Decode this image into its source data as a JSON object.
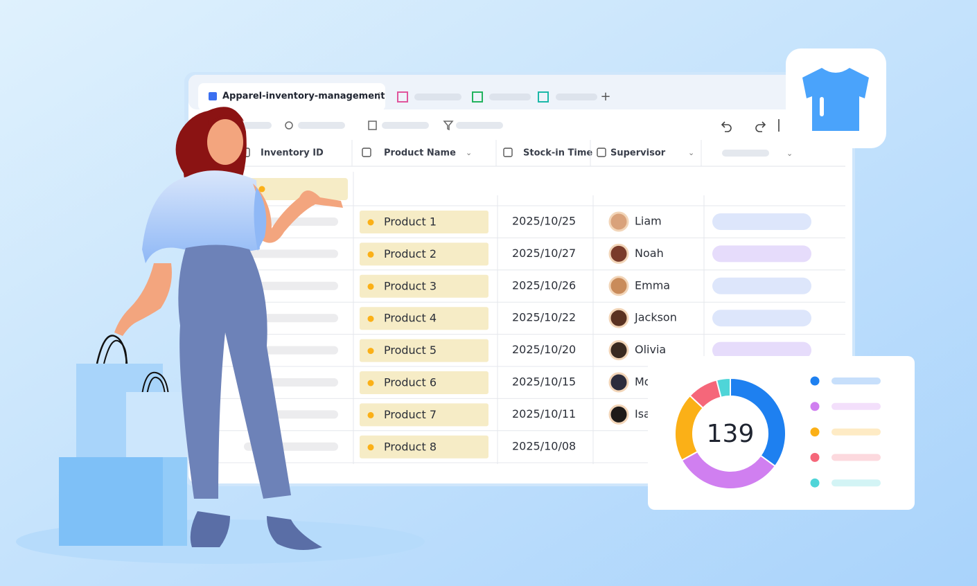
{
  "tabs": {
    "active": "Apparel-inventory-management"
  },
  "table": {
    "columns": [
      "Inventory ID",
      "Product Name",
      "Stock-in Time",
      "Supervisor"
    ],
    "rows": [
      {
        "product": "Product 1",
        "date": "2025/10/25",
        "supervisor": "Liam"
      },
      {
        "product": "Product 2",
        "date": "2025/10/27",
        "supervisor": "Noah"
      },
      {
        "product": "Product 3",
        "date": "2025/10/26",
        "supervisor": "Emma"
      },
      {
        "product": "Product 4",
        "date": "2025/10/22",
        "supervisor": "Jackson"
      },
      {
        "product": "Product 5",
        "date": "2025/10/20",
        "supervisor": "Olivia"
      },
      {
        "product": "Product 6",
        "date": "2025/10/15",
        "supervisor": "Mo"
      },
      {
        "product": "Product 7",
        "date": "2025/10/11",
        "supervisor": "Isa"
      },
      {
        "product": "Product 8",
        "date": "2025/10/08"
      }
    ]
  },
  "donut": {
    "total": 139,
    "segments": [
      {
        "color": "#1e80f0",
        "value": 35
      },
      {
        "color": "#d07ff0",
        "value": 32
      },
      {
        "color": "#fbb017",
        "value": 20
      },
      {
        "color": "#f5677a",
        "value": 9
      },
      {
        "color": "#4fd5d8",
        "value": 4
      }
    ]
  }
}
